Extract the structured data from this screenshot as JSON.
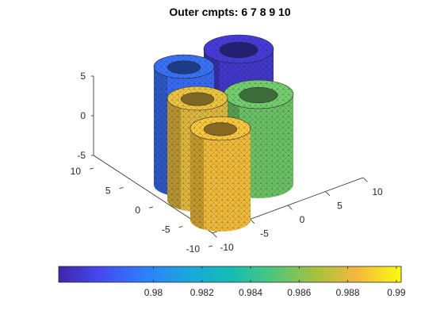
{
  "chart_data": {
    "type": "surface-3d",
    "title": "Outer cmpts: 6   7   8   9  10",
    "xlabel": "",
    "ylabel": "",
    "zlabel": "",
    "xlim": [
      -10,
      10
    ],
    "ylim": [
      -10,
      10
    ],
    "zlim": [
      -5,
      5
    ],
    "x_ticks": [
      "-10",
      "-5",
      "0",
      "5",
      "10"
    ],
    "y_ticks": [
      "-10",
      "-5",
      "0",
      "5",
      "10"
    ],
    "z_ticks": [
      "-5",
      "0",
      "5"
    ],
    "grid": false,
    "colorbar": {
      "location": "bottom",
      "range": [
        0.9761,
        0.9902
      ],
      "ticks": [
        "0.98",
        "0.982",
        "0.984",
        "0.986",
        "0.988",
        "0.99"
      ],
      "tick_values": [
        0.98,
        0.982,
        0.984,
        0.986,
        0.988,
        0.99
      ],
      "colormap": "parula"
    },
    "components": [
      {
        "id": "6",
        "shape": "hollow-cylinder",
        "value": 0.977
      },
      {
        "id": "7",
        "shape": "hollow-cylinder",
        "value": 0.979
      },
      {
        "id": "8",
        "shape": "hollow-cylinder",
        "value": 0.9885
      },
      {
        "id": "9",
        "shape": "hollow-cylinder",
        "value": 0.9855
      },
      {
        "id": "10",
        "shape": "hollow-cylinder",
        "value": 0.988
      }
    ]
  }
}
